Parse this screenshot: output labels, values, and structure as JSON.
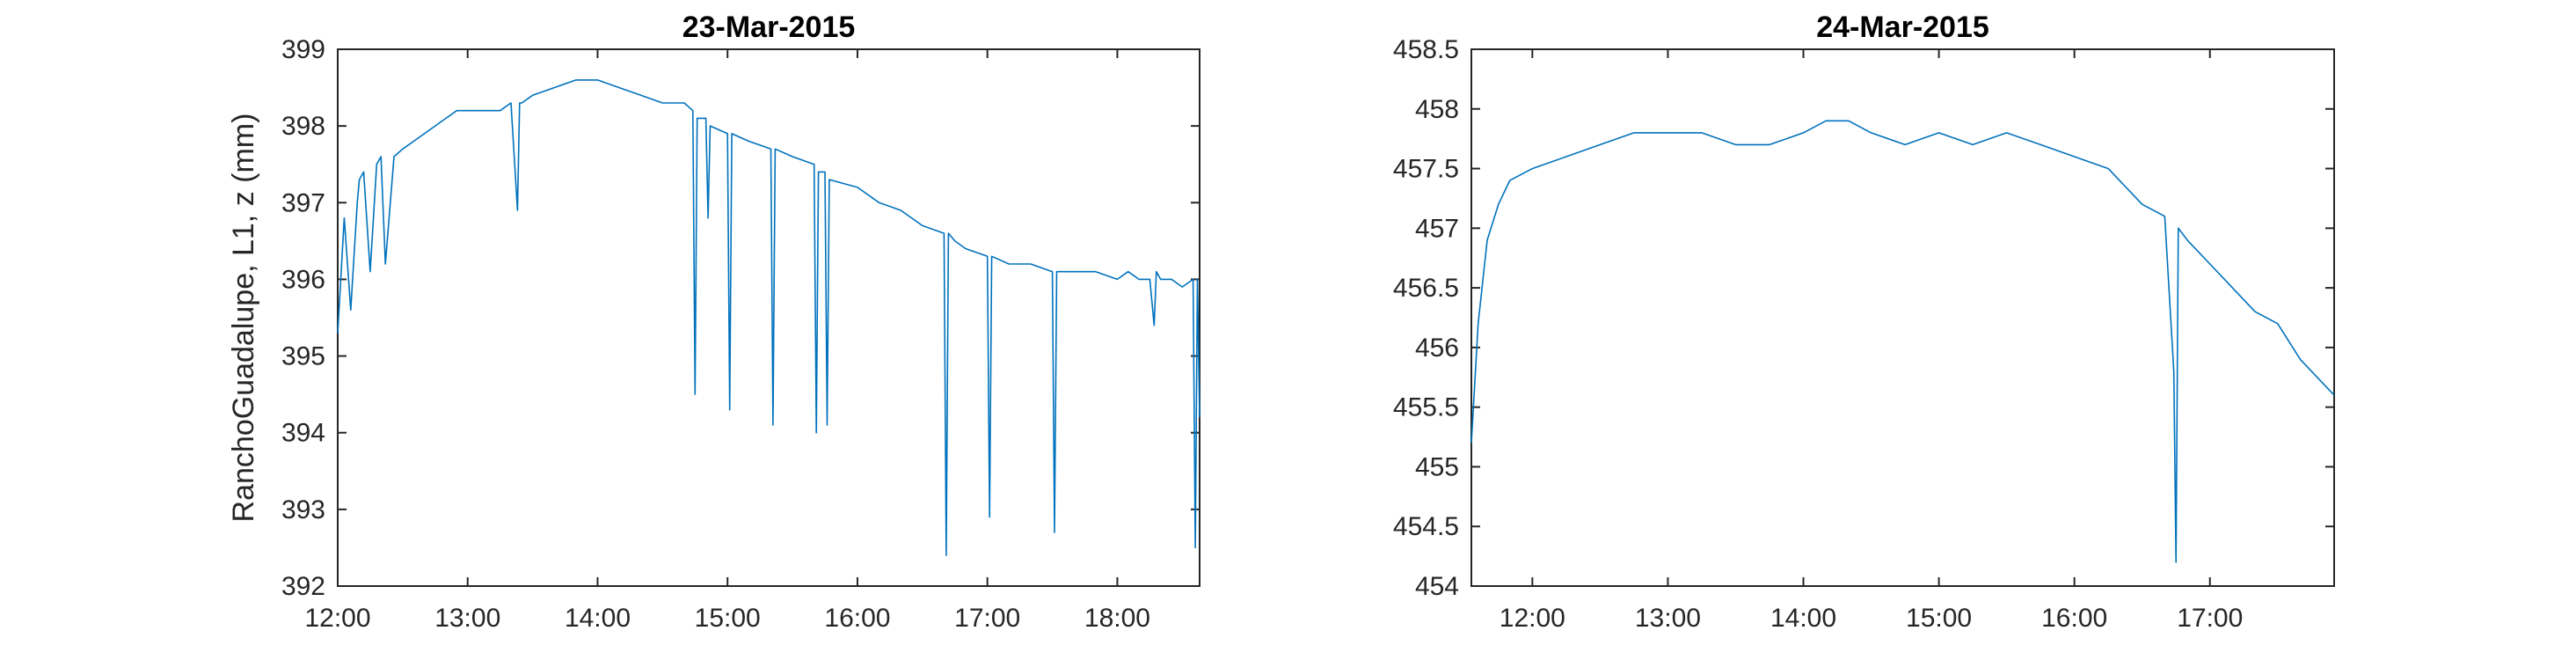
{
  "colors": {
    "series": "#0072BD",
    "axis": "#262626",
    "background": "#ffffff"
  },
  "chart_data": [
    {
      "type": "line",
      "title": "23-Mar-2015",
      "xlabel": "",
      "ylabel": "RanchoGuadalupe, L1, z (mm)",
      "xlim": [
        "12:00",
        "18:38"
      ],
      "ylim": [
        392,
        399
      ],
      "xticks": [
        "12:00",
        "13:00",
        "14:00",
        "15:00",
        "16:00",
        "17:00",
        "18:00"
      ],
      "yticks": [
        "392",
        "393",
        "394",
        "395",
        "396",
        "397",
        "398",
        "399"
      ],
      "grid": false,
      "legend": "none",
      "series": [
        {
          "x": [
            "12:00",
            "12:03",
            "12:06",
            "12:09",
            "12:10",
            "12:12",
            "12:15",
            "12:18",
            "12:20",
            "12:22",
            "12:26",
            "12:30",
            "12:35",
            "12:40",
            "12:45",
            "12:50",
            "12:55",
            "13:00",
            "13:05",
            "13:10",
            "13:15",
            "13:20",
            "13:23",
            "13:24",
            "13:25",
            "13:30",
            "13:40",
            "13:50",
            "14:00",
            "14:10",
            "14:20",
            "14:30",
            "14:40",
            "14:44",
            "14:45",
            "14:46",
            "14:50",
            "14:51",
            "14:52",
            "15:00",
            "15:01",
            "15:02",
            "15:10",
            "15:20",
            "15:21",
            "15:22",
            "15:30",
            "15:40",
            "15:41",
            "15:42",
            "15:45",
            "15:46",
            "15:47",
            "16:00",
            "16:10",
            "16:20",
            "16:30",
            "16:40",
            "16:41",
            "16:42",
            "16:45",
            "16:50",
            "17:00",
            "17:01",
            "17:02",
            "17:10",
            "17:20",
            "17:30",
            "17:31",
            "17:32",
            "17:40",
            "17:50",
            "18:00",
            "18:05",
            "18:10",
            "18:15",
            "18:17",
            "18:18",
            "18:20",
            "18:25",
            "18:30",
            "18:35",
            "18:36",
            "18:37",
            "18:38"
          ],
          "y": [
            395.3,
            396.8,
            395.6,
            397.0,
            397.3,
            397.4,
            396.1,
            397.5,
            397.6,
            396.2,
            397.6,
            397.7,
            397.8,
            397.9,
            398.0,
            398.1,
            398.2,
            398.2,
            398.2,
            398.2,
            398.2,
            398.3,
            396.9,
            398.3,
            398.3,
            398.4,
            398.5,
            398.6,
            398.6,
            398.5,
            398.4,
            398.3,
            398.3,
            398.2,
            394.5,
            398.1,
            398.1,
            396.8,
            398.0,
            397.9,
            394.3,
            397.9,
            397.8,
            397.7,
            394.1,
            397.7,
            397.6,
            397.5,
            394.0,
            397.4,
            397.4,
            394.1,
            397.3,
            397.2,
            397.0,
            396.9,
            396.7,
            396.6,
            392.4,
            396.6,
            396.5,
            396.4,
            396.3,
            392.9,
            396.3,
            396.2,
            396.2,
            396.1,
            392.7,
            396.1,
            396.1,
            396.1,
            396.0,
            396.1,
            396.0,
            396.0,
            395.4,
            396.1,
            396.0,
            396.0,
            395.9,
            396.0,
            392.5,
            396.0,
            394.2
          ]
        }
      ]
    },
    {
      "type": "line",
      "title": "24-Mar-2015",
      "xlabel": "",
      "ylabel": "",
      "xlim": [
        "11:33",
        "17:55"
      ],
      "ylim": [
        454,
        458.5
      ],
      "xticks": [
        "12:00",
        "13:00",
        "14:00",
        "15:00",
        "16:00",
        "17:00"
      ],
      "yticks": [
        "454",
        "454.5",
        "455",
        "455.5",
        "456",
        "456.5",
        "457",
        "457.5",
        "458",
        "458.5"
      ],
      "grid": false,
      "legend": "none",
      "series": [
        {
          "x": [
            "11:33",
            "11:36",
            "11:40",
            "11:45",
            "11:50",
            "12:00",
            "12:15",
            "12:30",
            "12:45",
            "13:00",
            "13:15",
            "13:30",
            "13:45",
            "14:00",
            "14:10",
            "14:20",
            "14:30",
            "14:45",
            "15:00",
            "15:15",
            "15:30",
            "15:45",
            "16:00",
            "16:15",
            "16:30",
            "16:40",
            "16:44",
            "16:45",
            "16:46",
            "16:50",
            "17:00",
            "17:10",
            "17:20",
            "17:30",
            "17:40",
            "17:50",
            "17:55"
          ],
          "y": [
            455.2,
            456.2,
            456.9,
            457.2,
            457.4,
            457.5,
            457.6,
            457.7,
            457.8,
            457.8,
            457.8,
            457.7,
            457.7,
            457.8,
            457.9,
            457.9,
            457.8,
            457.7,
            457.8,
            457.7,
            457.8,
            457.7,
            457.6,
            457.5,
            457.2,
            457.1,
            455.8,
            454.2,
            457.0,
            456.9,
            456.7,
            456.5,
            456.3,
            456.2,
            455.9,
            455.7,
            455.6
          ]
        }
      ]
    }
  ]
}
